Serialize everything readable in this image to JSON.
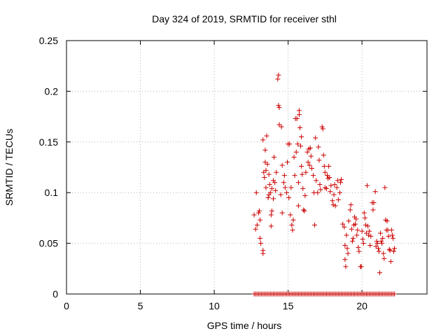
{
  "chart_data": {
    "type": "scatter",
    "title": "Day 324 of 2019, SRMTID for receiver sthl",
    "xlabel": "GPS time / hours",
    "ylabel": "SRMTID / TECUs",
    "xlim": [
      0,
      24.4
    ],
    "ylim": [
      0,
      0.25
    ],
    "xticks": [
      0,
      5,
      10,
      15,
      20
    ],
    "xtick_labels": [
      "0",
      "5",
      "10",
      "15",
      "20"
    ],
    "yticks": [
      0,
      0.05,
      0.1,
      0.15,
      0.2,
      0.25
    ],
    "ytick_labels": [
      "0",
      "0.05",
      "0.1",
      "0.15",
      "0.2",
      "0.25"
    ],
    "grid": true,
    "marker": "+",
    "color": "#cc0000",
    "series": [
      {
        "name": "SRMTID",
        "points": [
          [
            12.7,
            0.078
          ],
          [
            12.8,
            0.064
          ],
          [
            12.85,
            0.1
          ],
          [
            12.9,
            0.068
          ],
          [
            13.0,
            0.08
          ],
          [
            13.05,
            0.082
          ],
          [
            13.1,
            0.073
          ],
          [
            13.1,
            0.055
          ],
          [
            13.15,
            0.05
          ],
          [
            13.3,
            0.043
          ],
          [
            13.3,
            0.04
          ],
          [
            13.3,
            0.152
          ],
          [
            13.35,
            0.12
          ],
          [
            13.4,
            0.115
          ],
          [
            13.45,
            0.13
          ],
          [
            13.45,
            0.142
          ],
          [
            13.5,
            0.122
          ],
          [
            13.5,
            0.105
          ],
          [
            13.55,
            0.156
          ],
          [
            13.6,
            0.128
          ],
          [
            13.65,
            0.095
          ],
          [
            13.7,
            0.118
          ],
          [
            13.7,
            0.098
          ],
          [
            13.75,
            0.108
          ],
          [
            13.8,
            0.1
          ],
          [
            13.85,
            0.067
          ],
          [
            13.85,
            0.078
          ],
          [
            13.9,
            0.104
          ],
          [
            13.9,
            0.082
          ],
          [
            14.0,
            0.094
          ],
          [
            14.0,
            0.112
          ],
          [
            14.05,
            0.135
          ],
          [
            14.1,
            0.11
          ],
          [
            14.15,
            0.102
          ],
          [
            14.2,
            0.12
          ],
          [
            14.3,
            0.212
          ],
          [
            14.35,
            0.216
          ],
          [
            14.35,
            0.186
          ],
          [
            14.4,
            0.184
          ],
          [
            14.4,
            0.167
          ],
          [
            14.5,
            0.098
          ],
          [
            14.55,
            0.165
          ],
          [
            14.6,
            0.127
          ],
          [
            14.6,
            0.08
          ],
          [
            14.7,
            0.11
          ],
          [
            14.75,
            0.117
          ],
          [
            14.8,
            0.105
          ],
          [
            14.9,
            0.1
          ],
          [
            14.95,
            0.13
          ],
          [
            15.0,
            0.148
          ],
          [
            15.05,
            0.095
          ],
          [
            15.1,
            0.148
          ],
          [
            15.15,
            0.078
          ],
          [
            15.2,
            0.105
          ],
          [
            15.25,
            0.068
          ],
          [
            15.3,
            0.063
          ],
          [
            15.35,
            0.073
          ],
          [
            15.4,
            0.135
          ],
          [
            15.45,
            0.117
          ],
          [
            15.5,
            0.173
          ],
          [
            15.55,
            0.14
          ],
          [
            15.6,
            0.173
          ],
          [
            15.65,
            0.148
          ],
          [
            15.7,
            0.11
          ],
          [
            15.7,
            0.087
          ],
          [
            15.75,
            0.181
          ],
          [
            15.75,
            0.177
          ],
          [
            15.8,
            0.164
          ],
          [
            15.85,
            0.146
          ],
          [
            15.9,
            0.155
          ],
          [
            15.9,
            0.126
          ],
          [
            15.95,
            0.118
          ],
          [
            16.0,
            0.104
          ],
          [
            16.05,
            0.083
          ],
          [
            16.1,
            0.082
          ],
          [
            16.15,
            0.097
          ],
          [
            16.2,
            0.12
          ],
          [
            16.3,
            0.14
          ],
          [
            16.35,
            0.13
          ],
          [
            16.4,
            0.143
          ],
          [
            16.45,
            0.127
          ],
          [
            16.5,
            0.144
          ],
          [
            16.55,
            0.136
          ],
          [
            16.6,
            0.124
          ],
          [
            16.7,
            0.117
          ],
          [
            16.75,
            0.1
          ],
          [
            16.8,
            0.068
          ],
          [
            16.85,
            0.154
          ],
          [
            16.9,
            0.112
          ],
          [
            17.0,
            0.1
          ],
          [
            17.05,
            0.145
          ],
          [
            17.1,
            0.132
          ],
          [
            17.15,
            0.108
          ],
          [
            17.2,
            0.103
          ],
          [
            17.3,
            0.165
          ],
          [
            17.35,
            0.163
          ],
          [
            17.4,
            0.137
          ],
          [
            17.45,
            0.126
          ],
          [
            17.5,
            0.12
          ],
          [
            17.5,
            0.105
          ],
          [
            17.6,
            0.104
          ],
          [
            17.65,
            0.117
          ],
          [
            17.7,
            0.114
          ],
          [
            17.75,
            0.126
          ],
          [
            17.8,
            0.115
          ],
          [
            17.85,
            0.101
          ],
          [
            17.9,
            0.107
          ],
          [
            18.0,
            0.092
          ],
          [
            18.05,
            0.088
          ],
          [
            18.1,
            0.098
          ],
          [
            18.15,
            0.108
          ],
          [
            18.2,
            0.087
          ],
          [
            18.3,
            0.105
          ],
          [
            18.35,
            0.112
          ],
          [
            18.4,
            0.093
          ],
          [
            18.5,
            0.1
          ],
          [
            18.55,
            0.11
          ],
          [
            18.6,
            0.113
          ],
          [
            18.7,
            0.069
          ],
          [
            18.8,
            0.066
          ],
          [
            18.85,
            0.048
          ],
          [
            18.85,
            0.034
          ],
          [
            18.9,
            0.027
          ],
          [
            18.95,
            0.058
          ],
          [
            19.0,
            0.045
          ],
          [
            19.05,
            0.04
          ],
          [
            19.1,
            0.072
          ],
          [
            19.2,
            0.083
          ],
          [
            19.25,
            0.088
          ],
          [
            19.3,
            0.064
          ],
          [
            19.35,
            0.052
          ],
          [
            19.4,
            0.055
          ],
          [
            19.45,
            0.068
          ],
          [
            19.5,
            0.076
          ],
          [
            19.55,
            0.069
          ],
          [
            19.6,
            0.074
          ],
          [
            19.65,
            0.058
          ],
          [
            19.7,
            0.063
          ],
          [
            19.75,
            0.046
          ],
          [
            19.8,
            0.042
          ],
          [
            19.9,
            0.027
          ],
          [
            19.95,
            0.027
          ],
          [
            20.0,
            0.062
          ],
          [
            20.05,
            0.054
          ],
          [
            20.1,
            0.05
          ],
          [
            20.15,
            0.08
          ],
          [
            20.2,
            0.075
          ],
          [
            20.25,
            0.068
          ],
          [
            20.3,
            0.06
          ],
          [
            20.35,
            0.107
          ],
          [
            20.4,
            0.067
          ],
          [
            20.45,
            0.058
          ],
          [
            20.5,
            0.062
          ],
          [
            20.55,
            0.048
          ],
          [
            20.6,
            0.057
          ],
          [
            20.7,
            0.09
          ],
          [
            20.75,
            0.083
          ],
          [
            20.8,
            0.09
          ],
          [
            20.9,
            0.101
          ],
          [
            20.95,
            0.047
          ],
          [
            21.0,
            0.052
          ],
          [
            21.05,
            0.05
          ],
          [
            21.1,
            0.045
          ],
          [
            21.15,
            0.042
          ],
          [
            21.2,
            0.021
          ],
          [
            21.25,
            0.06
          ],
          [
            21.3,
            0.052
          ],
          [
            21.35,
            0.05
          ],
          [
            21.4,
            0.055
          ],
          [
            21.45,
            0.04
          ],
          [
            21.5,
            0.035
          ],
          [
            21.55,
            0.105
          ],
          [
            21.6,
            0.073
          ],
          [
            21.65,
            0.063
          ],
          [
            21.7,
            0.072
          ],
          [
            21.75,
            0.063
          ],
          [
            21.8,
            0.057
          ],
          [
            21.85,
            0.044
          ],
          [
            21.9,
            0.043
          ],
          [
            21.95,
            0.032
          ],
          [
            22.0,
            0.063
          ],
          [
            22.05,
            0.058
          ],
          [
            22.1,
            0.055
          ],
          [
            22.15,
            0.042
          ],
          [
            22.2,
            0.045
          ]
        ],
        "zero_band": {
          "x_start": 12.7,
          "x_end": 22.2,
          "step": 0.1,
          "y": 0
        }
      }
    ]
  }
}
